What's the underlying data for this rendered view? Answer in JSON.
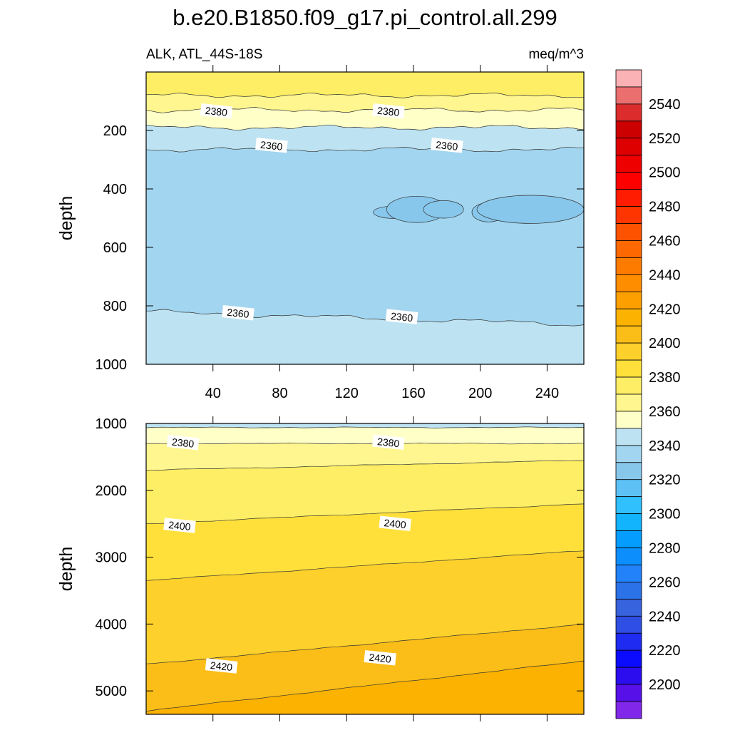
{
  "title": "b.e20.B1850.f09_g17.pi_control.all.299",
  "subtitle_left": "ALK, ATL_44S-18S",
  "subtitle_right": "meq/m^3",
  "chart_data": [
    {
      "type": "heatmap",
      "panel": "upper",
      "ylabel": "depth",
      "xlim": [
        0,
        262
      ],
      "ylim": [
        1000,
        0
      ],
      "x_ticks": [
        "40",
        "80",
        "120",
        "160",
        "200",
        "240"
      ],
      "y_ticks": [
        "200",
        "400",
        "600",
        "800",
        "1000"
      ],
      "bands": [
        {
          "from_depth": 0,
          "to_depth": 80,
          "range": [
            2390,
            2400
          ],
          "color": "#fdee65"
        },
        {
          "from_depth": 80,
          "to_depth": 130,
          "range": [
            2380,
            2390
          ],
          "color": "#fff68f"
        },
        {
          "from_depth": 130,
          "to_depth": 190,
          "range": [
            2370,
            2380
          ],
          "color": "#ffffc8"
        },
        {
          "from_depth": 190,
          "to_depth": 265,
          "range": [
            2360,
            2370
          ],
          "color": "#bde3f2"
        },
        {
          "from_depth": 265,
          "to_depth": 820,
          "range": [
            2350,
            2360
          ],
          "color": "#a2d5ef"
        },
        {
          "from_depth": 820,
          "to_depth": 1000,
          "range": [
            2360,
            2370
          ],
          "color": "#bde3f2"
        }
      ],
      "contour_labels": [
        {
          "text": "2380",
          "x": 42,
          "depth": 135
        },
        {
          "text": "2380",
          "x": 145,
          "depth": 135
        },
        {
          "text": "2360",
          "x": 75,
          "depth": 252
        },
        {
          "text": "2360",
          "x": 180,
          "depth": 252
        },
        {
          "text": "2360",
          "x": 55,
          "depth": 825
        },
        {
          "text": "2360",
          "x": 153,
          "depth": 838
        }
      ]
    },
    {
      "type": "heatmap",
      "panel": "lower",
      "ylabel": "depth",
      "xlim": [
        0,
        262
      ],
      "ylim": [
        5350,
        1000
      ],
      "y_ticks": [
        "1000",
        "2000",
        "3000",
        "4000",
        "5000"
      ],
      "bands": [
        {
          "from_depth": 1000,
          "to_depth": 1060,
          "range": [
            2360,
            2370
          ],
          "color": "#bde3f2"
        },
        {
          "from_depth": 1060,
          "to_depth": 1300,
          "range": [
            2370,
            2380
          ],
          "color": "#ffffc8"
        },
        {
          "from_depth": 1300,
          "to_depth": 1700,
          "range": [
            2380,
            2390
          ],
          "color": "#fff68f"
        },
        {
          "from_depth": 1700,
          "to_depth": 2500,
          "range": [
            2390,
            2400
          ],
          "color": "#fdee65"
        },
        {
          "from_depth": 2500,
          "to_depth": 3350,
          "range": [
            2400,
            2410
          ],
          "color": "#ffe03a"
        },
        {
          "from_depth": 3350,
          "to_depth": 4600,
          "range": [
            2410,
            2420
          ],
          "color": "#fdd02b"
        },
        {
          "from_depth": 4600,
          "to_depth": 5300,
          "range": [
            2420,
            2430
          ],
          "color": "#fbbd17"
        },
        {
          "from_depth": 5300,
          "to_depth": 5350,
          "range": [
            2430,
            2440
          ],
          "color": "#fbb200"
        }
      ],
      "contour_labels": [
        {
          "text": "2380",
          "x": 22,
          "depth": 1290
        },
        {
          "text": "2380",
          "x": 145,
          "depth": 1285
        },
        {
          "text": "2400",
          "x": 20,
          "depth": 2530
        },
        {
          "text": "2400",
          "x": 149,
          "depth": 2500
        },
        {
          "text": "2420",
          "x": 45,
          "depth": 4630
        },
        {
          "text": "2420",
          "x": 140,
          "depth": 4510
        }
      ]
    }
  ],
  "colorbar": {
    "labels": [
      "2540",
      "2520",
      "2500",
      "2480",
      "2460",
      "2440",
      "2420",
      "2400",
      "2380",
      "2360",
      "2340",
      "2320",
      "2300",
      "2280",
      "2260",
      "2240",
      "2220",
      "2200"
    ],
    "colors": [
      "#fbb2b5",
      "#ec6f6f",
      "#dc2d2d",
      "#cc0000",
      "#de0000",
      "#ee0000",
      "#fe0000",
      "#ff1c00",
      "#ff3500",
      "#fd5200",
      "#fd6800",
      "#fd7c00",
      "#fe8d00",
      "#fe9f00",
      "#fbb200",
      "#fbbd17",
      "#fdd02b",
      "#ffe03a",
      "#fdee65",
      "#fff68f",
      "#ffffc8",
      "#bde3f2",
      "#a2d5ef",
      "#88c7ec",
      "#5ec1f6",
      "#2fc0fd",
      "#11b4fd",
      "#049dfd",
      "#0c8ffd",
      "#2182fa",
      "#2b72e8",
      "#3863de",
      "#2f4fe4",
      "#1f2bf1",
      "#0b0cfd",
      "#2b0dee",
      "#5711e8",
      "#8127ea"
    ]
  }
}
